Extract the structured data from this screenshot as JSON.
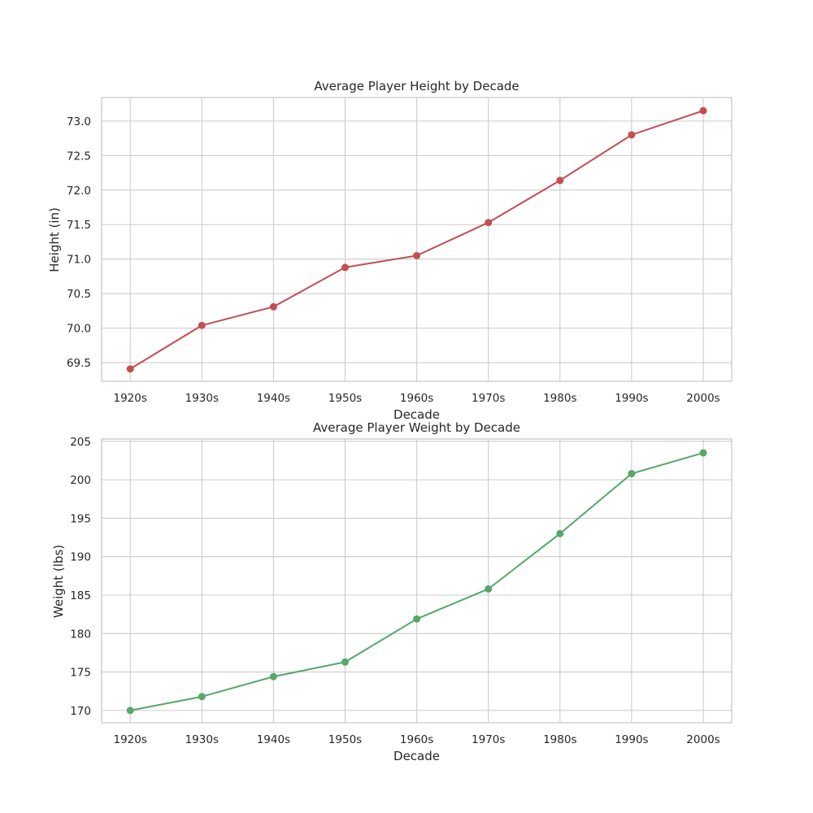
{
  "chart_data": [
    {
      "type": "line",
      "title": "Average Player Height by Decade",
      "xlabel": "Decade",
      "ylabel": "Height (in)",
      "categories": [
        "1920s",
        "1930s",
        "1940s",
        "1950s",
        "1960s",
        "1970s",
        "1980s",
        "1990s",
        "2000s"
      ],
      "values": [
        69.41,
        70.04,
        70.31,
        70.88,
        71.05,
        71.53,
        72.14,
        72.8,
        73.15
      ],
      "yticks": [
        "69.5",
        "70.0",
        "70.5",
        "71.0",
        "71.5",
        "72.0",
        "72.5",
        "73.0"
      ],
      "ylim": [
        69.23,
        73.34
      ],
      "grid": true,
      "color": "#c44e52"
    },
    {
      "type": "line",
      "title": "Average Player Weight by Decade",
      "xlabel": "Decade",
      "ylabel": "Weight (lbs)",
      "categories": [
        "1920s",
        "1930s",
        "1940s",
        "1950s",
        "1960s",
        "1970s",
        "1980s",
        "1990s",
        "2000s"
      ],
      "values": [
        170.0,
        171.8,
        174.4,
        176.3,
        181.9,
        185.8,
        193.0,
        200.8,
        203.5
      ],
      "yticks": [
        "170",
        "175",
        "180",
        "185",
        "190",
        "195",
        "200",
        "205"
      ],
      "ylim": [
        168.4,
        205.3
      ],
      "grid": true,
      "color": "#55a868"
    }
  ]
}
